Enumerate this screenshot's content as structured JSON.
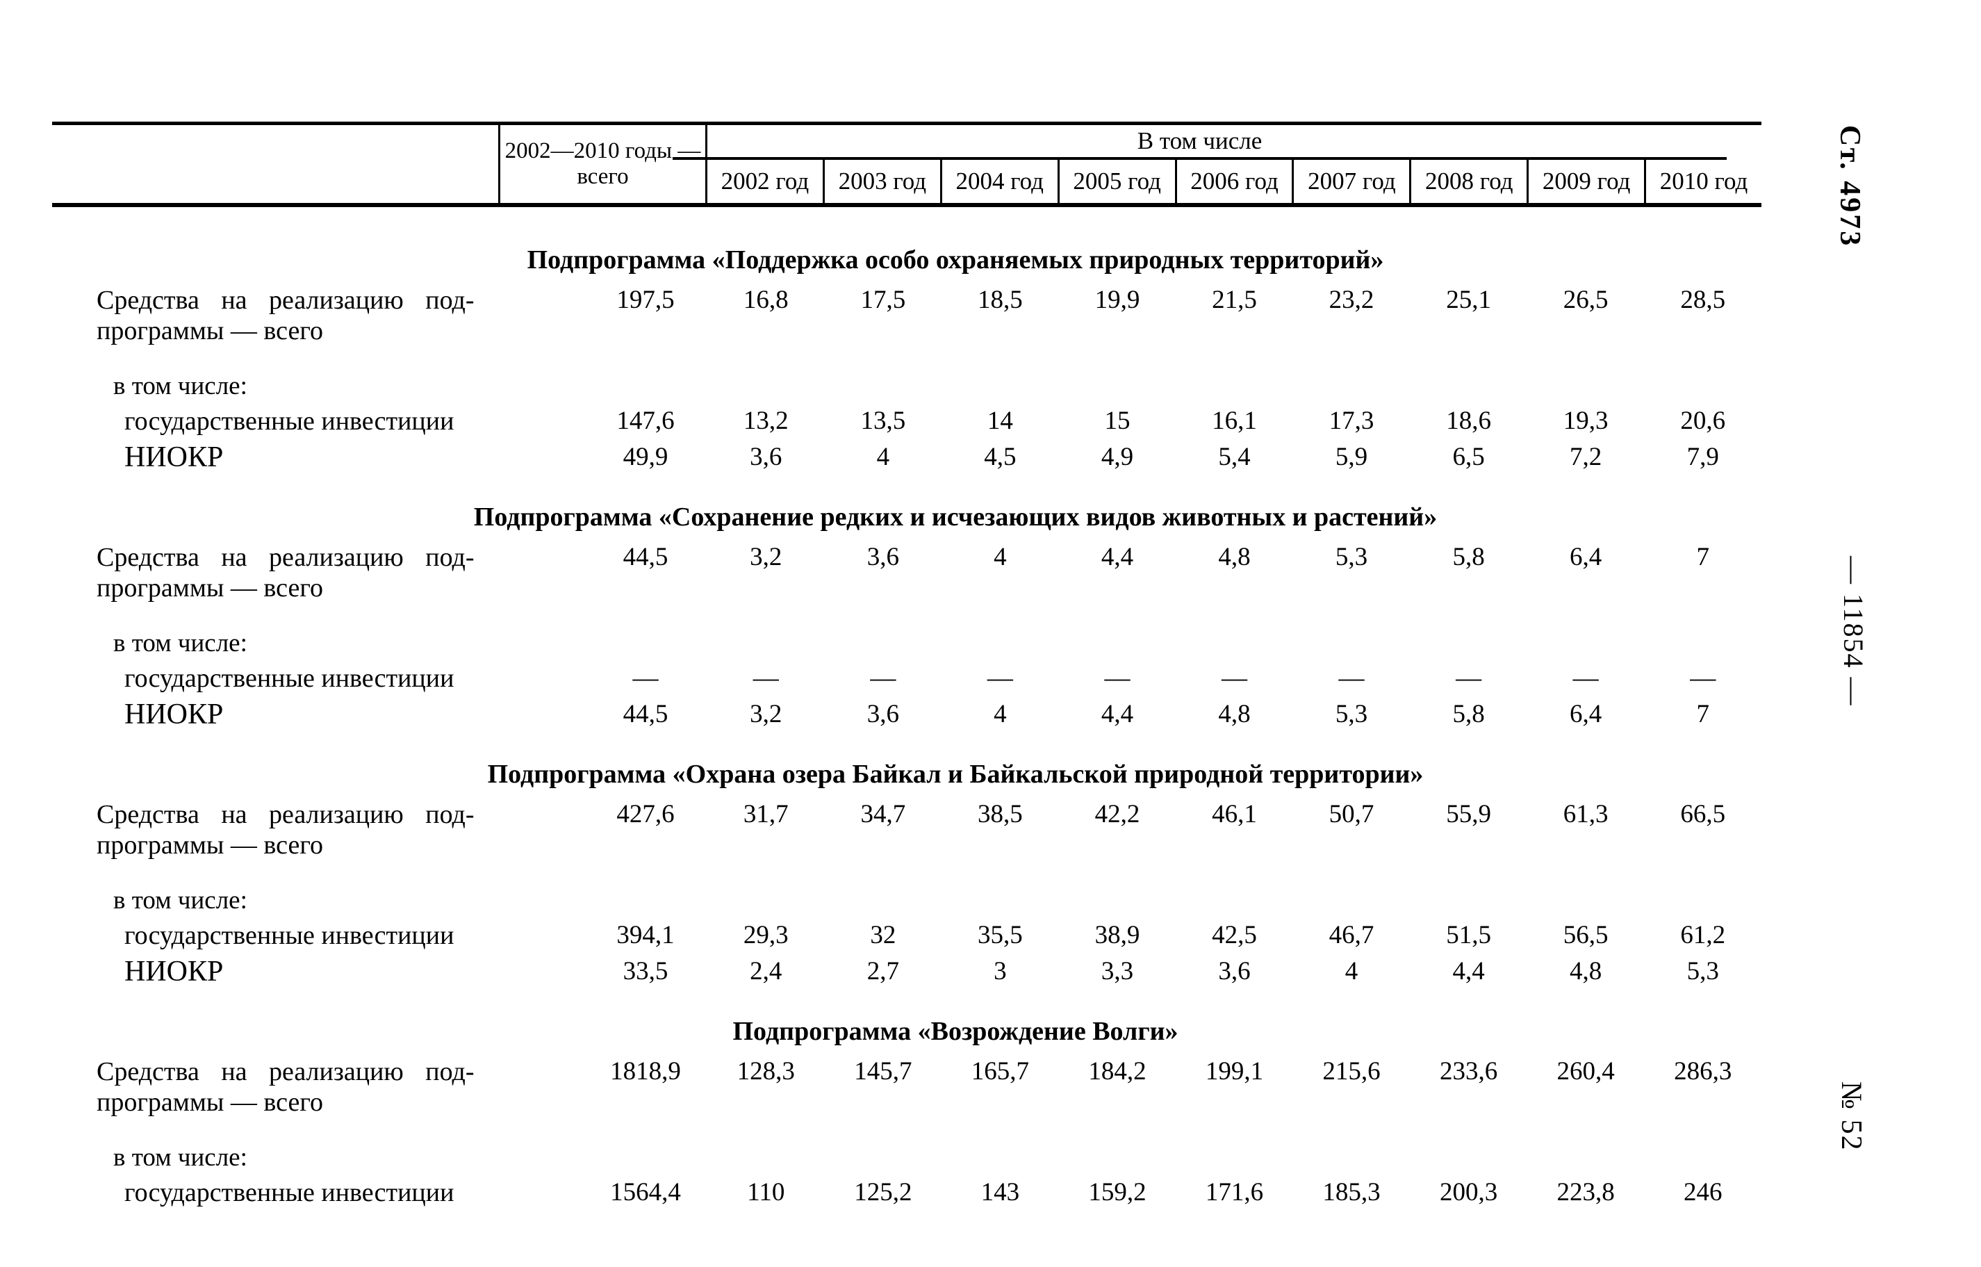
{
  "page": {
    "margin_notes": {
      "top": "Ст. 4973",
      "middle": "— 11854 —",
      "bottom": "№ 52"
    }
  },
  "table": {
    "header": {
      "total_col_line1": "2002—2010 годы —",
      "total_col_line2": "всего",
      "group_label": "В том числе",
      "year_cols": [
        "2002 год",
        "2003 год",
        "2004 год",
        "2005 год",
        "2006 год",
        "2007 год",
        "2008 год",
        "2009 год",
        "2010 год"
      ]
    },
    "labels": {
      "row_total_line1": "Средства на реализацию под-",
      "row_total_line2": "программы — всего",
      "including": "в том числе:",
      "state_investments": "государственные инвестиции",
      "niokr": "НИОКР"
    },
    "sections": [
      {
        "title": "Подпрограмма «Поддержка особо охраняемых природных территорий»",
        "total": [
          "197,5",
          "16,8",
          "17,5",
          "18,5",
          "19,9",
          "21,5",
          "23,2",
          "25,1",
          "26,5",
          "28,5"
        ],
        "state_investments": [
          "147,6",
          "13,2",
          "13,5",
          "14",
          "15",
          "16,1",
          "17,3",
          "18,6",
          "19,3",
          "20,6"
        ],
        "niokr": [
          "49,9",
          "3,6",
          "4",
          "4,5",
          "4,9",
          "5,4",
          "5,9",
          "6,5",
          "7,2",
          "7,9"
        ]
      },
      {
        "title": "Подпрограмма «Сохранение редких и исчезающих видов животных и растений»",
        "total": [
          "44,5",
          "3,2",
          "3,6",
          "4",
          "4,4",
          "4,8",
          "5,3",
          "5,8",
          "6,4",
          "7"
        ],
        "state_investments": [
          "—",
          "—",
          "—",
          "—",
          "—",
          "—",
          "—",
          "—",
          "—",
          "—"
        ],
        "niokr": [
          "44,5",
          "3,2",
          "3,6",
          "4",
          "4,4",
          "4,8",
          "5,3",
          "5,8",
          "6,4",
          "7"
        ]
      },
      {
        "title": "Подпрограмма «Охрана озера Байкал и Байкальской природной территории»",
        "total": [
          "427,6",
          "31,7",
          "34,7",
          "38,5",
          "42,2",
          "46,1",
          "50,7",
          "55,9",
          "61,3",
          "66,5"
        ],
        "state_investments": [
          "394,1",
          "29,3",
          "32",
          "35,5",
          "38,9",
          "42,5",
          "46,7",
          "51,5",
          "56,5",
          "61,2"
        ],
        "niokr": [
          "33,5",
          "2,4",
          "2,7",
          "3",
          "3,3",
          "3,6",
          "4",
          "4,4",
          "4,8",
          "5,3"
        ]
      },
      {
        "title": "Подпрограмма «Возрождение Волги»",
        "total": [
          "1818,9",
          "128,3",
          "145,7",
          "165,7",
          "184,2",
          "199,1",
          "215,6",
          "233,6",
          "260,4",
          "286,3"
        ],
        "state_investments": [
          "1564,4",
          "110",
          "125,2",
          "143",
          "159,2",
          "171,6",
          "185,3",
          "200,3",
          "223,8",
          "246"
        ],
        "niokr": null
      }
    ]
  }
}
